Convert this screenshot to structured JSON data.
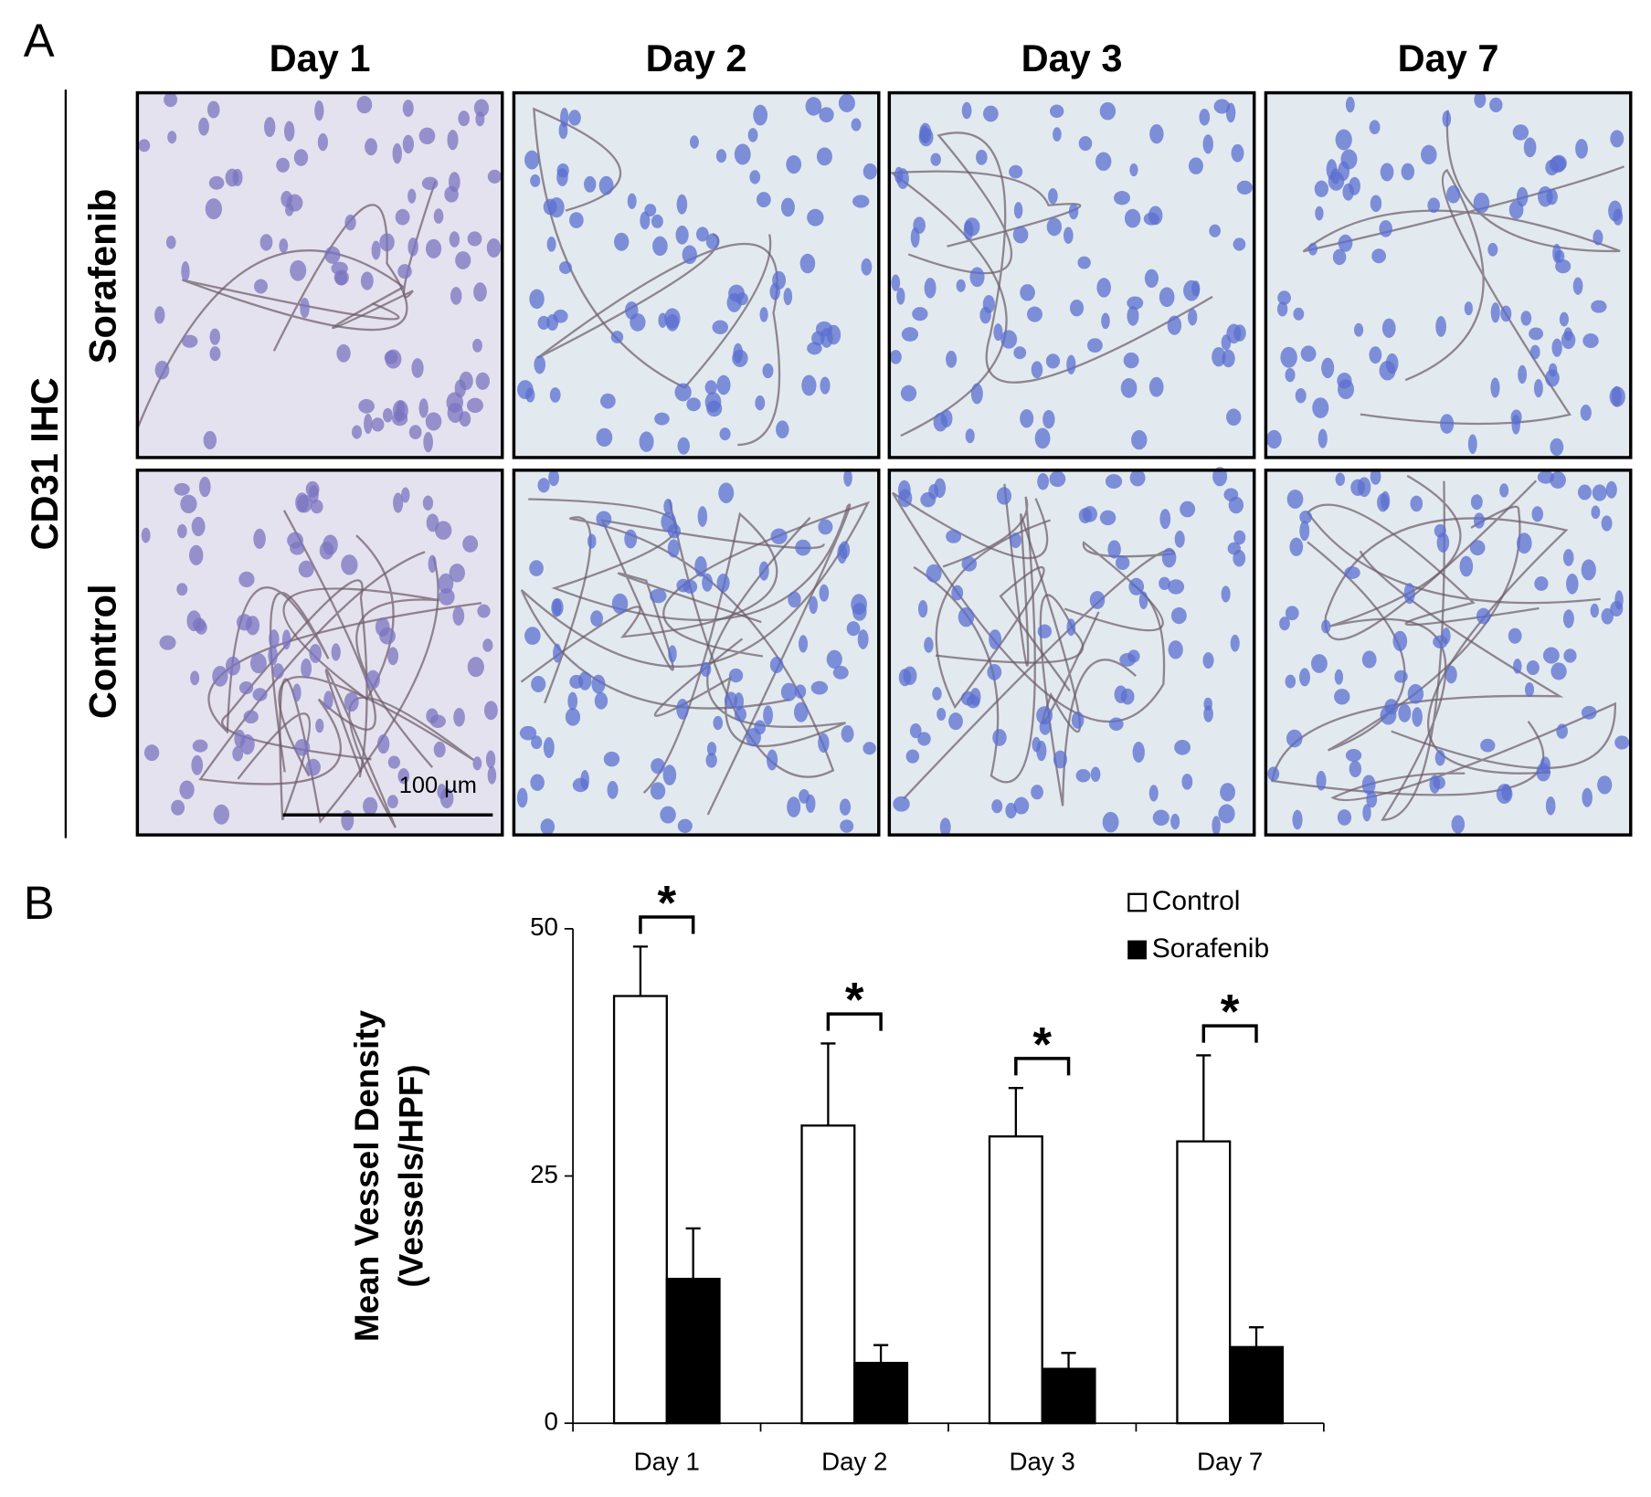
{
  "panel_a": {
    "label": "A",
    "columns": [
      "Day 1",
      "Day 2",
      "Day 3",
      "Day 7"
    ],
    "group_label": "CD31 IHC",
    "rows": [
      "Sorafenib",
      "Control"
    ],
    "scale_bar": "100 µm"
  },
  "chart_data": {
    "type": "bar",
    "panel_label": "B",
    "ylabel": [
      "Mean Vessel Density",
      "(Vessels/HPF)"
    ],
    "categories": [
      "Day 1",
      "Day 2",
      "Day 3",
      "Day 7"
    ],
    "series": [
      {
        "name": "Control",
        "color": "#ffffff",
        "values": [
          43.2,
          30.1,
          29,
          28.5
        ],
        "errors": [
          5,
          8.3,
          4.9,
          8.7
        ]
      },
      {
        "name": "Sorafenib",
        "color": "#000000",
        "values": [
          14.6,
          6.1,
          5.5,
          7.7
        ],
        "errors": [
          5.1,
          1.8,
          1.6,
          2
        ]
      }
    ],
    "significance": [
      "*",
      "*",
      "*",
      "*"
    ],
    "ylim": [
      0,
      50
    ],
    "yticks": [
      0,
      25,
      50
    ],
    "legend": "top-right",
    "grid": false
  }
}
